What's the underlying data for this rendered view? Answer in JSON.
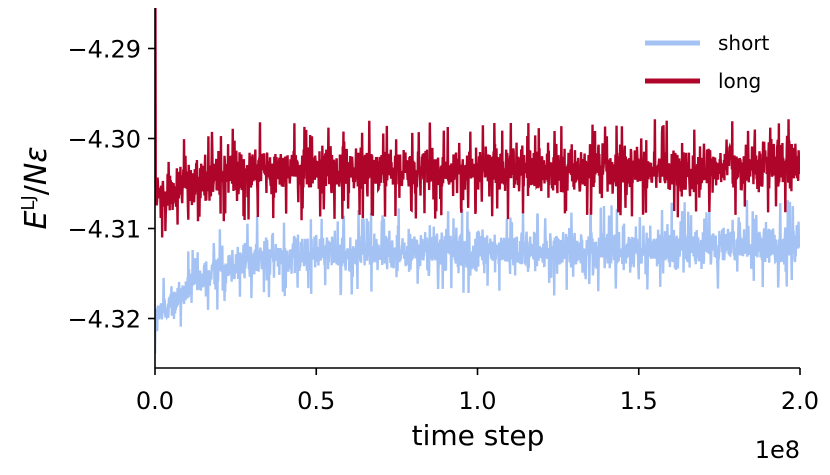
{
  "chart_data": {
    "type": "line",
    "title": "",
    "xlabel": "time step",
    "x_offset_label": "1e8",
    "ylabel": {
      "E": "E",
      "superscript": "LJ",
      "slash": "/",
      "N": "N",
      "epsilon": "ε"
    },
    "xlim": [
      0.0,
      2.0
    ],
    "ylim": [
      -4.3255,
      -4.2855
    ],
    "x_ticks": [
      0.0,
      0.5,
      1.0,
      1.5,
      2.0
    ],
    "x_tick_labels": [
      "0.0",
      "0.5",
      "1.0",
      "1.5",
      "2.0"
    ],
    "y_ticks": [
      -4.29,
      -4.3,
      -4.31,
      -4.32
    ],
    "y_tick_labels": [
      "−4.29",
      "−4.30",
      "−4.31",
      "−4.32"
    ],
    "grid": false,
    "legend_position": "top-right",
    "series": [
      {
        "name": "short",
        "color": "#a4c2f4",
        "x": [
          0.0,
          0.05,
          0.1,
          0.2,
          0.3,
          0.5,
          0.7,
          1.0,
          1.3,
          1.5,
          1.7,
          2.0
        ],
        "y_mean": [
          -4.321,
          -4.3195,
          -4.318,
          -4.3155,
          -4.314,
          -4.313,
          -4.3128,
          -4.3127,
          -4.3126,
          -4.3125,
          -4.3123,
          -4.3122
        ],
        "y_min": [
          -4.3245,
          -4.3225,
          -4.321,
          -4.319,
          -4.318,
          -4.3175,
          -4.3175,
          -4.3175,
          -4.3175,
          -4.3175,
          -4.317,
          -4.317
        ],
        "y_max": [
          -4.316,
          -4.314,
          -4.3125,
          -4.31,
          -4.3085,
          -4.308,
          -4.3078,
          -4.3075,
          -4.3075,
          -4.3072,
          -4.307,
          -4.3065
        ]
      },
      {
        "name": "long",
        "color": "#b0052a",
        "x": [
          0.0,
          0.05,
          0.1,
          0.2,
          0.3,
          0.5,
          0.7,
          1.0,
          1.3,
          1.5,
          1.7,
          2.0
        ],
        "y_mean": [
          -4.3065,
          -4.306,
          -4.3055,
          -4.305,
          -4.3047,
          -4.3045,
          -4.3045,
          -4.3045,
          -4.3044,
          -4.3043,
          -4.3043,
          -4.3042
        ],
        "y_min": [
          -4.3115,
          -4.311,
          -4.3105,
          -4.3095,
          -4.3095,
          -4.309,
          -4.309,
          -4.309,
          -4.309,
          -4.3088,
          -4.3088,
          -4.3085
        ],
        "y_max": [
          -4.302,
          -4.3005,
          -4.2995,
          -4.2985,
          -4.2982,
          -4.298,
          -4.298,
          -4.298,
          -4.298,
          -4.2978,
          -4.2978,
          -4.2975
        ],
        "initial_spike": -4.2895
      }
    ]
  }
}
